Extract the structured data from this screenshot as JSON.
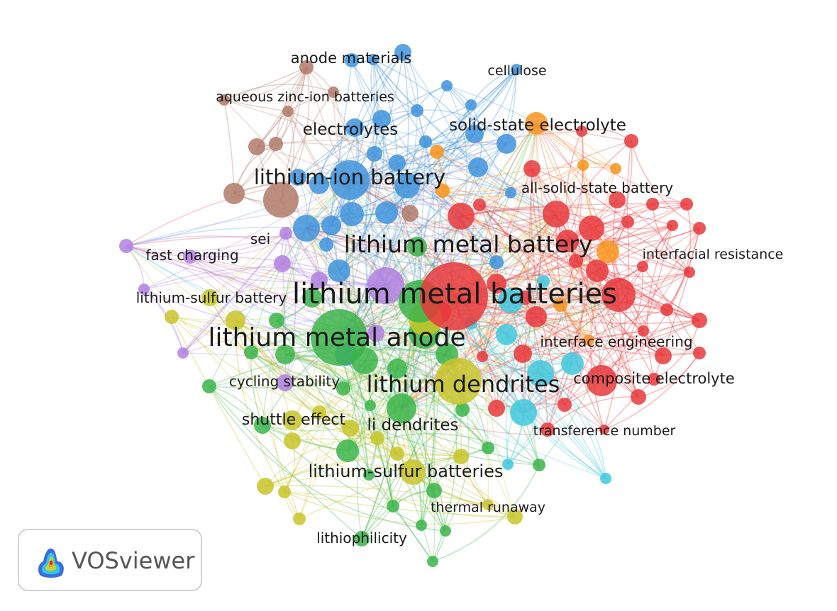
{
  "palette": {
    "red": "#e8383c",
    "blue": "#3f93dc",
    "green": "#3bb44a",
    "yellow": "#c8c42a",
    "purple": "#b080e0",
    "orange": "#f7941d",
    "cyan": "#3fc8dc",
    "brown": "#b07a6a"
  },
  "keywords": [
    {
      "label": "lithium metal batteries",
      "cluster": "red",
      "weight": 5
    },
    {
      "label": "lithium metal battery",
      "cluster": "red",
      "weight": 4
    },
    {
      "label": "lithium metal anode",
      "cluster": "green",
      "weight": 5
    },
    {
      "label": "lithium dendrites",
      "cluster": "yellow",
      "weight": 4
    },
    {
      "label": "lithium-ion battery",
      "cluster": "blue",
      "weight": 4
    },
    {
      "label": "solid-state electrolyte",
      "cluster": "orange",
      "weight": 3
    },
    {
      "label": "electrolytes",
      "cluster": "blue",
      "weight": 3
    },
    {
      "label": "all-solid-state battery",
      "cluster": "red",
      "weight": 2
    },
    {
      "label": "anode materials",
      "cluster": "brown",
      "weight": 2
    },
    {
      "label": "cellulose",
      "cluster": "blue",
      "weight": 1
    },
    {
      "label": "aqueous zinc-ion batteries",
      "cluster": "brown",
      "weight": 1
    },
    {
      "label": "sei",
      "cluster": "purple",
      "weight": 2
    },
    {
      "label": "fast charging",
      "cluster": "purple",
      "weight": 2
    },
    {
      "label": "interfacial resistance",
      "cluster": "red",
      "weight": 1
    },
    {
      "label": "lithium-sulfur battery",
      "cluster": "yellow",
      "weight": 2
    },
    {
      "label": "interface engineering",
      "cluster": "cyan",
      "weight": 2
    },
    {
      "label": "composite electrolyte",
      "cluster": "red",
      "weight": 2
    },
    {
      "label": "cycling stability",
      "cluster": "purple",
      "weight": 2
    },
    {
      "label": "shuttle effect",
      "cluster": "yellow",
      "weight": 2
    },
    {
      "label": "li dendrites",
      "cluster": "green",
      "weight": 3
    },
    {
      "label": "transference number",
      "cluster": "red",
      "weight": 1
    },
    {
      "label": "lithium-sulfur batteries",
      "cluster": "yellow",
      "weight": 3
    },
    {
      "label": "thermal runaway",
      "cluster": "yellow",
      "weight": 1
    },
    {
      "label": "lithiophilicity",
      "cluster": "green",
      "weight": 1
    }
  ],
  "logo": {
    "text": "VOSviewer",
    "icon": "vosviewer-logo-icon"
  }
}
